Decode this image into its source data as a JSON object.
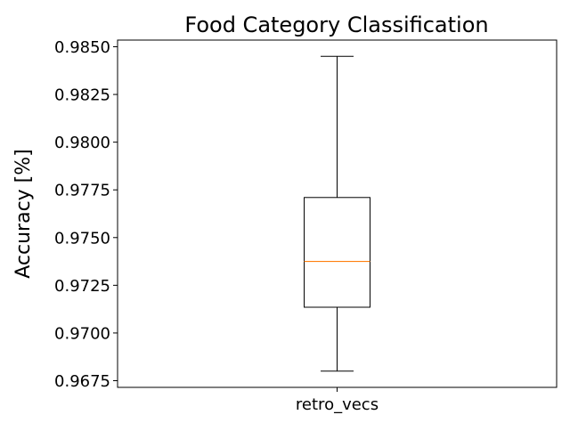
{
  "chart_data": {
    "type": "box",
    "title": "Food Category Classification",
    "xlabel": "",
    "ylabel": "Accuracy [%]",
    "categories": [
      "retro_vecs"
    ],
    "boxes": [
      {
        "category": "retro_vecs",
        "whisker_low": 0.968,
        "q1": 0.97135,
        "median": 0.97375,
        "q3": 0.9771,
        "whisker_high": 0.9845
      }
    ],
    "ylim": [
      0.96715,
      0.98535
    ],
    "yticks": [
      0.9675,
      0.97,
      0.9725,
      0.975,
      0.9775,
      0.98,
      0.9825,
      0.985
    ],
    "ytick_labels": [
      "0.9675",
      "0.9700",
      "0.9725",
      "0.9750",
      "0.9775",
      "0.9800",
      "0.9825",
      "0.9850"
    ],
    "grid": false,
    "colors": {
      "box": "#000000",
      "median": "#ff7f0e",
      "whisker": "#000000"
    }
  }
}
